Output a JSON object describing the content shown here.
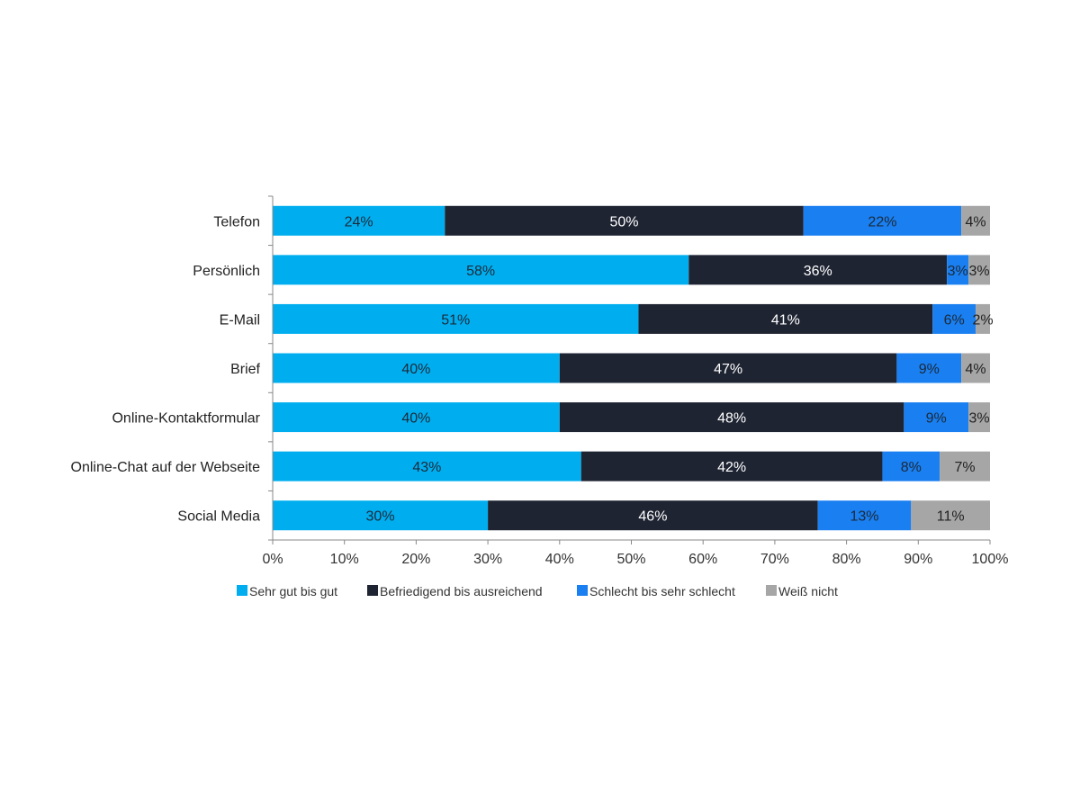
{
  "chart_data": {
    "type": "bar",
    "orientation": "horizontal",
    "stacked": true,
    "title": "",
    "xlabel": "",
    "ylabel": "",
    "xlim": [
      0,
      100
    ],
    "x_ticks": [
      "0%",
      "10%",
      "20%",
      "30%",
      "40%",
      "50%",
      "60%",
      "70%",
      "80%",
      "90%",
      "100%"
    ],
    "categories": [
      "Telefon",
      "Persönlich",
      "E-Mail",
      "Brief",
      "Online-Kontaktformular",
      "Online-Chat auf der Webseite",
      "Social Media"
    ],
    "series": [
      {
        "name": "Sehr gut bis gut",
        "color": "#00aeef",
        "label_color": "#1a2a3a",
        "values": [
          24,
          58,
          51,
          40,
          40,
          43,
          30
        ]
      },
      {
        "name": "Befriedigend bis ausreichend",
        "color": "#1f2433",
        "label_color": "#ffffff",
        "values": [
          50,
          36,
          41,
          47,
          48,
          42,
          46
        ]
      },
      {
        "name": "Schlecht bis sehr schlecht",
        "color": "#1a7ff0",
        "label_color": "#1a2a3a",
        "values": [
          22,
          3,
          6,
          9,
          9,
          8,
          13
        ]
      },
      {
        "name": "Weiß nicht",
        "color": "#a6a6a6",
        "label_color": "#222222",
        "values": [
          4,
          3,
          2,
          4,
          3,
          7,
          11
        ]
      }
    ],
    "legend_position": "bottom"
  }
}
